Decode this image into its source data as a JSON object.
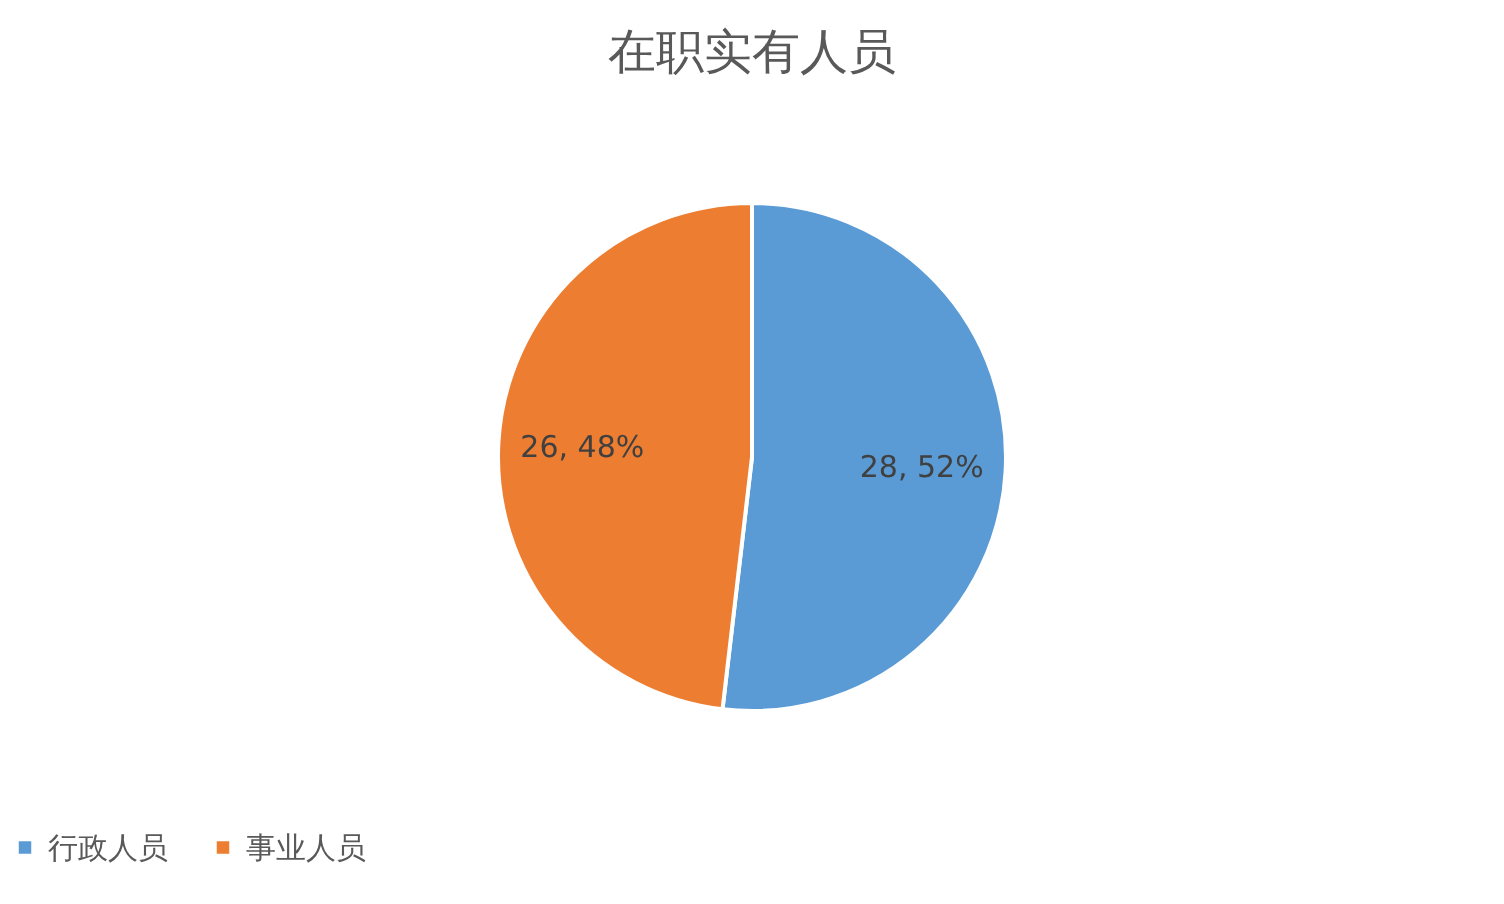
{
  "chart_data": {
    "type": "pie",
    "title": "在职实有人员",
    "categories": [
      "行政人员",
      "事业人员"
    ],
    "values": [
      28,
      26
    ],
    "colors": [
      "#5b9bd5",
      "#ed7d31"
    ],
    "value_labels": [
      "28, 52%",
      "26, 48%"
    ],
    "legend": "bottom"
  }
}
